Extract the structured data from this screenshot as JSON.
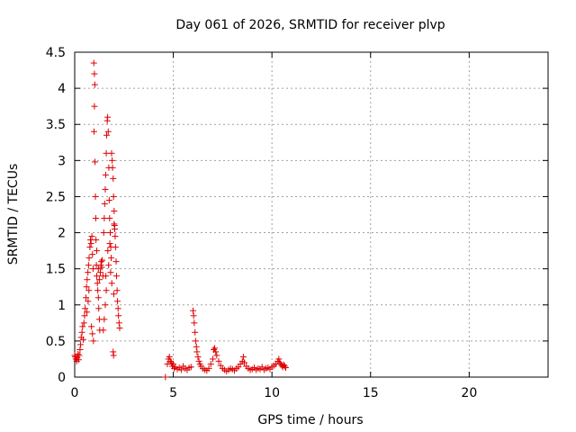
{
  "chart_data": {
    "type": "scatter",
    "title": "Day 061 of 2026, SRMTID for receiver plvp",
    "xlabel": "GPS time / hours",
    "ylabel": "SRMTID / TECUs",
    "xlim": [
      0,
      24
    ],
    "ylim": [
      0,
      4.5
    ],
    "xticks": [
      0,
      5,
      10,
      15,
      20
    ],
    "xtick_labels": [
      "0",
      "5",
      "10",
      "15",
      "20"
    ],
    "yticks": [
      0,
      0.5,
      1,
      1.5,
      2,
      2.5,
      3,
      3.5,
      4,
      4.5
    ],
    "ytick_labels": [
      "0",
      "0.5",
      "1",
      "1.5",
      "2",
      "2.5",
      "3",
      "3.5",
      "4",
      "4.5"
    ],
    "grid": true,
    "marker": "+",
    "marker_color": "#dd0000",
    "series": [
      {
        "points": [
          [
            0.0,
            0.3
          ],
          [
            0.03,
            0.28
          ],
          [
            0.06,
            0.25
          ],
          [
            0.1,
            0.22
          ],
          [
            0.13,
            0.27
          ],
          [
            0.17,
            0.32
          ],
          [
            0.2,
            0.24
          ],
          [
            0.23,
            0.3
          ],
          [
            0.27,
            0.38
          ],
          [
            0.3,
            0.45
          ],
          [
            0.33,
            0.55
          ],
          [
            0.37,
            0.62
          ],
          [
            0.4,
            0.7
          ],
          [
            0.43,
            0.52
          ],
          [
            0.47,
            0.75
          ],
          [
            0.5,
            0.85
          ],
          [
            0.53,
            0.95
          ],
          [
            0.57,
            1.1
          ],
          [
            0.6,
            1.25
          ],
          [
            0.63,
            1.35
          ],
          [
            0.67,
            1.45
          ],
          [
            0.7,
            1.55
          ],
          [
            0.73,
            1.65
          ],
          [
            0.77,
            1.8
          ],
          [
            0.8,
            1.9
          ],
          [
            0.83,
            1.85
          ],
          [
            0.87,
            1.95
          ],
          [
            0.9,
            1.7
          ],
          [
            0.93,
            1.5
          ],
          [
            0.97,
            4.35
          ],
          [
            1.0,
            4.2
          ],
          [
            1.02,
            4.05
          ],
          [
            1.0,
            3.75
          ],
          [
            0.98,
            3.4
          ],
          [
            1.03,
            2.98
          ],
          [
            1.05,
            2.5
          ],
          [
            1.07,
            2.2
          ],
          [
            1.1,
            1.55
          ],
          [
            1.12,
            1.4
          ],
          [
            1.15,
            1.3
          ],
          [
            1.17,
            1.2
          ],
          [
            1.2,
            1.1
          ],
          [
            1.22,
            0.95
          ],
          [
            1.25,
            0.8
          ],
          [
            1.27,
            0.65
          ],
          [
            0.95,
            0.5
          ],
          [
            0.9,
            0.6
          ],
          [
            0.85,
            0.7
          ],
          [
            1.3,
            1.45
          ],
          [
            1.33,
            1.55
          ],
          [
            1.35,
            1.6
          ],
          [
            1.37,
            1.52
          ],
          [
            1.4,
            1.62
          ],
          [
            1.43,
            1.4
          ],
          [
            1.47,
            2.0
          ],
          [
            1.5,
            2.2
          ],
          [
            1.52,
            2.4
          ],
          [
            1.55,
            2.6
          ],
          [
            1.57,
            2.8
          ],
          [
            1.6,
            3.1
          ],
          [
            1.62,
            3.35
          ],
          [
            1.65,
            3.55
          ],
          [
            1.67,
            3.6
          ],
          [
            1.7,
            3.4
          ],
          [
            1.73,
            2.9
          ],
          [
            1.75,
            2.45
          ],
          [
            1.77,
            2.2
          ],
          [
            1.8,
            2.0
          ],
          [
            1.83,
            1.8
          ],
          [
            1.85,
            1.65
          ],
          [
            1.87,
            3.1
          ],
          [
            1.9,
            3.0
          ],
          [
            1.92,
            2.9
          ],
          [
            1.95,
            2.75
          ],
          [
            1.97,
            2.5
          ],
          [
            2.0,
            2.3
          ],
          [
            2.02,
            2.1
          ],
          [
            2.05,
            1.95
          ],
          [
            2.07,
            1.8
          ],
          [
            2.1,
            1.6
          ],
          [
            2.12,
            1.4
          ],
          [
            2.15,
            1.2
          ],
          [
            2.17,
            1.05
          ],
          [
            2.2,
            0.95
          ],
          [
            2.22,
            0.85
          ],
          [
            2.25,
            0.75
          ],
          [
            2.28,
            0.68
          ],
          [
            1.95,
            0.35
          ],
          [
            1.97,
            0.3
          ],
          [
            1.6,
            1.2
          ],
          [
            1.55,
            1.0
          ],
          [
            1.5,
            0.8
          ],
          [
            1.45,
            0.65
          ],
          [
            1.58,
            1.4
          ],
          [
            1.68,
            1.75
          ],
          [
            1.72,
            1.55
          ],
          [
            1.78,
            1.85
          ],
          [
            1.82,
            1.45
          ],
          [
            1.88,
            1.3
          ],
          [
            1.98,
            1.15
          ],
          [
            2.03,
            2.05
          ],
          [
            2.0,
            2.12
          ],
          [
            1.2,
            1.5
          ],
          [
            1.25,
            1.35
          ],
          [
            1.12,
            1.75
          ],
          [
            1.08,
            1.9
          ],
          [
            0.72,
            1.2
          ],
          [
            0.68,
            1.05
          ],
          [
            0.62,
            0.9
          ],
          [
            4.6,
            0.0
          ],
          [
            4.7,
            0.18
          ],
          [
            4.75,
            0.25
          ],
          [
            4.8,
            0.28
          ],
          [
            4.85,
            0.22
          ],
          [
            4.9,
            0.2
          ],
          [
            4.95,
            0.15
          ],
          [
            5.0,
            0.18
          ],
          [
            5.05,
            0.12
          ],
          [
            5.1,
            0.14
          ],
          [
            5.2,
            0.11
          ],
          [
            5.3,
            0.13
          ],
          [
            5.4,
            0.1
          ],
          [
            5.5,
            0.15
          ],
          [
            5.6,
            0.12
          ],
          [
            5.7,
            0.1
          ],
          [
            5.8,
            0.13
          ],
          [
            5.9,
            0.14
          ],
          [
            6.0,
            0.92
          ],
          [
            6.03,
            0.85
          ],
          [
            6.06,
            0.75
          ],
          [
            6.1,
            0.62
          ],
          [
            6.13,
            0.5
          ],
          [
            6.17,
            0.42
          ],
          [
            6.2,
            0.35
          ],
          [
            6.25,
            0.28
          ],
          [
            6.3,
            0.22
          ],
          [
            6.35,
            0.18
          ],
          [
            6.4,
            0.15
          ],
          [
            6.5,
            0.12
          ],
          [
            6.6,
            0.1
          ],
          [
            6.7,
            0.09
          ],
          [
            6.8,
            0.12
          ],
          [
            6.9,
            0.18
          ],
          [
            7.0,
            0.25
          ],
          [
            7.05,
            0.38
          ],
          [
            7.1,
            0.4
          ],
          [
            7.15,
            0.35
          ],
          [
            7.2,
            0.3
          ],
          [
            7.3,
            0.22
          ],
          [
            7.4,
            0.16
          ],
          [
            7.5,
            0.12
          ],
          [
            7.6,
            0.1
          ],
          [
            7.7,
            0.08
          ],
          [
            7.8,
            0.1
          ],
          [
            7.9,
            0.12
          ],
          [
            8.0,
            0.11
          ],
          [
            8.1,
            0.09
          ],
          [
            8.2,
            0.12
          ],
          [
            8.3,
            0.14
          ],
          [
            8.4,
            0.18
          ],
          [
            8.5,
            0.22
          ],
          [
            8.55,
            0.28
          ],
          [
            8.6,
            0.2
          ],
          [
            8.7,
            0.15
          ],
          [
            8.8,
            0.12
          ],
          [
            8.9,
            0.1
          ],
          [
            9.0,
            0.11
          ],
          [
            9.1,
            0.13
          ],
          [
            9.2,
            0.1
          ],
          [
            9.3,
            0.12
          ],
          [
            9.4,
            0.11
          ],
          [
            9.5,
            0.14
          ],
          [
            9.6,
            0.1
          ],
          [
            9.7,
            0.12
          ],
          [
            9.8,
            0.13
          ],
          [
            9.9,
            0.11
          ],
          [
            10.0,
            0.14
          ],
          [
            10.1,
            0.16
          ],
          [
            10.2,
            0.18
          ],
          [
            10.3,
            0.22
          ],
          [
            10.35,
            0.25
          ],
          [
            10.4,
            0.2
          ],
          [
            10.45,
            0.18
          ],
          [
            10.5,
            0.16
          ],
          [
            10.55,
            0.14
          ],
          [
            10.6,
            0.17
          ],
          [
            10.65,
            0.15
          ],
          [
            10.7,
            0.13
          ]
        ]
      }
    ]
  }
}
